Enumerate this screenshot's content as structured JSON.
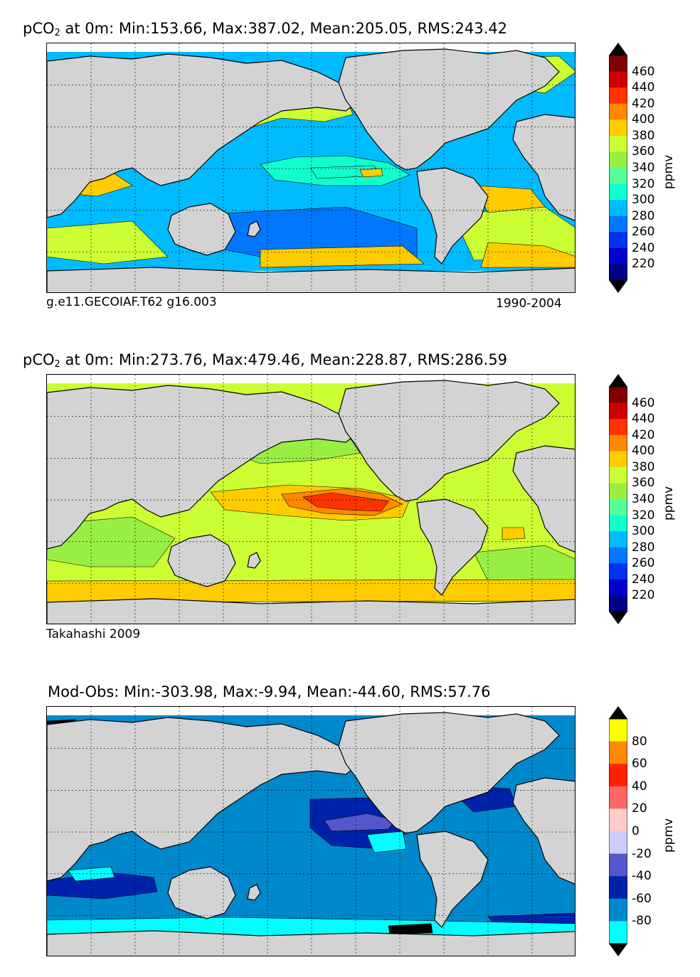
{
  "panels": [
    {
      "title_prefix": "pCO",
      "title_sub": "2",
      "title_rest": " at 0m: Min:153.66, Max:387.02, Mean:205.05, RMS:243.42",
      "caption_left": "g.e11.GECOIAF.T62 g16.003",
      "caption_right": "1990-2004",
      "colorbar": {
        "ticks": [
          "460",
          "440",
          "420",
          "400",
          "380",
          "360",
          "340",
          "320",
          "300",
          "280",
          "260",
          "240",
          "220"
        ],
        "unit": "ppmv",
        "colors": [
          "#7f0000",
          "#cc0000",
          "#ff3300",
          "#ff8800",
          "#ffcc00",
          "#ccff33",
          "#99ee44",
          "#55ff99",
          "#11ffcc",
          "#00bbff",
          "#0077ff",
          "#0033ee",
          "#0000cc",
          "#000088"
        ]
      },
      "ocean_main": "#00bbff",
      "ocean_features": [
        "#0077ff",
        "#ccff33",
        "#11ffcc",
        "#ffcc00"
      ]
    },
    {
      "title_prefix": "pCO",
      "title_sub": "2",
      "title_rest": " at 0m: Min:273.76, Max:479.46, Mean:228.87, RMS:286.59",
      "caption_left": "Takahashi 2009",
      "caption_right": "",
      "colorbar": {
        "ticks": [
          "460",
          "440",
          "420",
          "400",
          "380",
          "360",
          "340",
          "320",
          "300",
          "280",
          "260",
          "240",
          "220"
        ],
        "unit": "ppmv",
        "colors": [
          "#7f0000",
          "#cc0000",
          "#ff3300",
          "#ff8800",
          "#ffcc00",
          "#ccff33",
          "#99ee44",
          "#55ff99",
          "#11ffcc",
          "#00bbff",
          "#0077ff",
          "#0033ee",
          "#0000cc",
          "#000088"
        ]
      },
      "ocean_main": "#ccff33",
      "ocean_features": [
        "#99ee44",
        "#ff8800",
        "#ff3300",
        "#ffcc00"
      ]
    },
    {
      "title_prefix": "Mod-Obs: Min:-303.98, Max:-9.94, Mean:-44.60, RMS:57.76",
      "title_sub": "",
      "title_rest": "",
      "caption_left": "",
      "caption_right": "",
      "colorbar": {
        "ticks": [
          "80",
          "60",
          "40",
          "20",
          "0",
          "-20",
          "-40",
          "-60",
          "-80"
        ],
        "unit": "ppmv",
        "colors": [
          "#ffff00",
          "#ff8800",
          "#ff2200",
          "#ff6666",
          "#ffcccc",
          "#ccccff",
          "#5555cc",
          "#0022aa",
          "#0088cc",
          "#00ffff"
        ]
      },
      "ocean_main": "#0088cc",
      "ocean_features": [
        "#0022aa",
        "#00ffff",
        "#5555cc",
        "#000000"
      ]
    }
  ]
}
